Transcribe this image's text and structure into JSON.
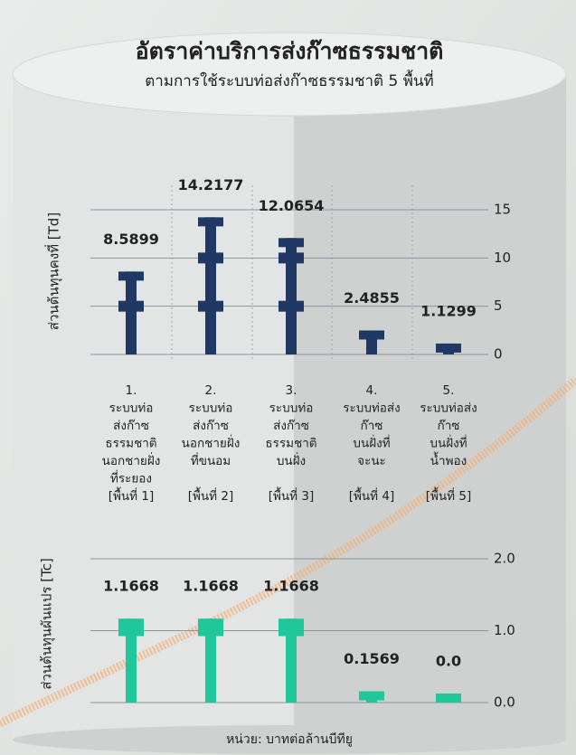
{
  "title": "อัตราค่าบริการส่งก๊าซธรรมชาติ",
  "subtitle": "ตามการใช้ระบบท่อส่งก๊าซธรรมชาติ 5 พื้นที่",
  "footer": "หน่วย: บาทต่อล้านบีทียู",
  "chart_data": [
    {
      "type": "bar",
      "ylabel": "ส่วนต้นทุนคงที่ [Td]",
      "categories": [
        "1.\nระบบท่อ\nส่งก๊าซ\nธรรมชาติ\nนอกชายฝั่ง\nที่ระยอง\n[พื้นที่ 1]",
        "2.\nระบบท่อ\nส่งก๊าซ\nนอกชายฝั่ง\nที่ขนอม\n\n[พื้นที่ 2]",
        "3.\nระบบท่อ\nส่งก๊าซ\nธรรมชาติ\nบนฝั่ง\n\n[พื้นที่ 3]",
        "4.\nระบบท่อส่ง\nก๊าซ\nบนฝั่งที่\nจะนะ\n\n[พื้นที่ 4]",
        "5.\nระบบท่อส่ง\nก๊าซ\nบนฝั่งที่\nน้ำพอง\n\n[พื้นที่ 5]"
      ],
      "values": [
        8.5899,
        14.2177,
        12.0654,
        2.4855,
        1.1299
      ],
      "color": "#1f3864",
      "ylim": [
        0,
        15
      ],
      "yticks": [
        0,
        5,
        10,
        15
      ],
      "grid": true
    },
    {
      "type": "bar",
      "ylabel": "ส่วนต้นทุนผันแปร [Tc]",
      "values": [
        1.1668,
        1.1668,
        1.1668,
        0.1569,
        0.0
      ],
      "value_labels": [
        "1.1668",
        "1.1668",
        "1.1668",
        "0.1569",
        "0.0"
      ],
      "color": "#1fc79a",
      "ylim": [
        0,
        2
      ],
      "yticks": [
        {
          "value": 0,
          "label": "0.0"
        },
        {
          "value": 1,
          "label": "1.0"
        },
        {
          "value": 2,
          "label": "2.0"
        }
      ],
      "grid": true
    }
  ]
}
